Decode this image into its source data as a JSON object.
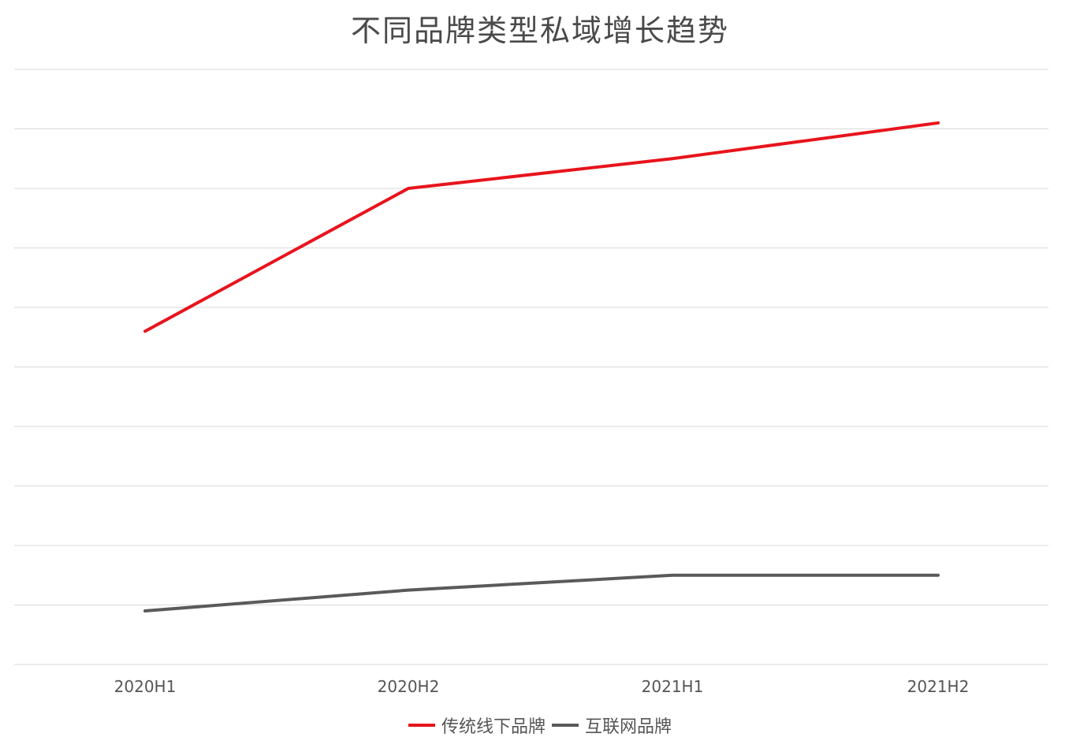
{
  "chart_data": {
    "type": "line",
    "title": "不同品牌类型私域增长趋势",
    "categories": [
      "2020H1",
      "2020H2",
      "2021H1",
      "2021H2"
    ],
    "ylim": [
      0,
      10
    ],
    "grid": true,
    "y_axis_labels_shown": false,
    "legend_position": "bottom",
    "series": [
      {
        "name": "传统线下品牌",
        "color": "#e8141c",
        "values": [
          5.6,
          8.0,
          8.5,
          9.1
        ]
      },
      {
        "name": "互联网品牌",
        "color": "#5a5a5a",
        "values": [
          0.9,
          1.25,
          1.5,
          1.5
        ]
      }
    ]
  }
}
